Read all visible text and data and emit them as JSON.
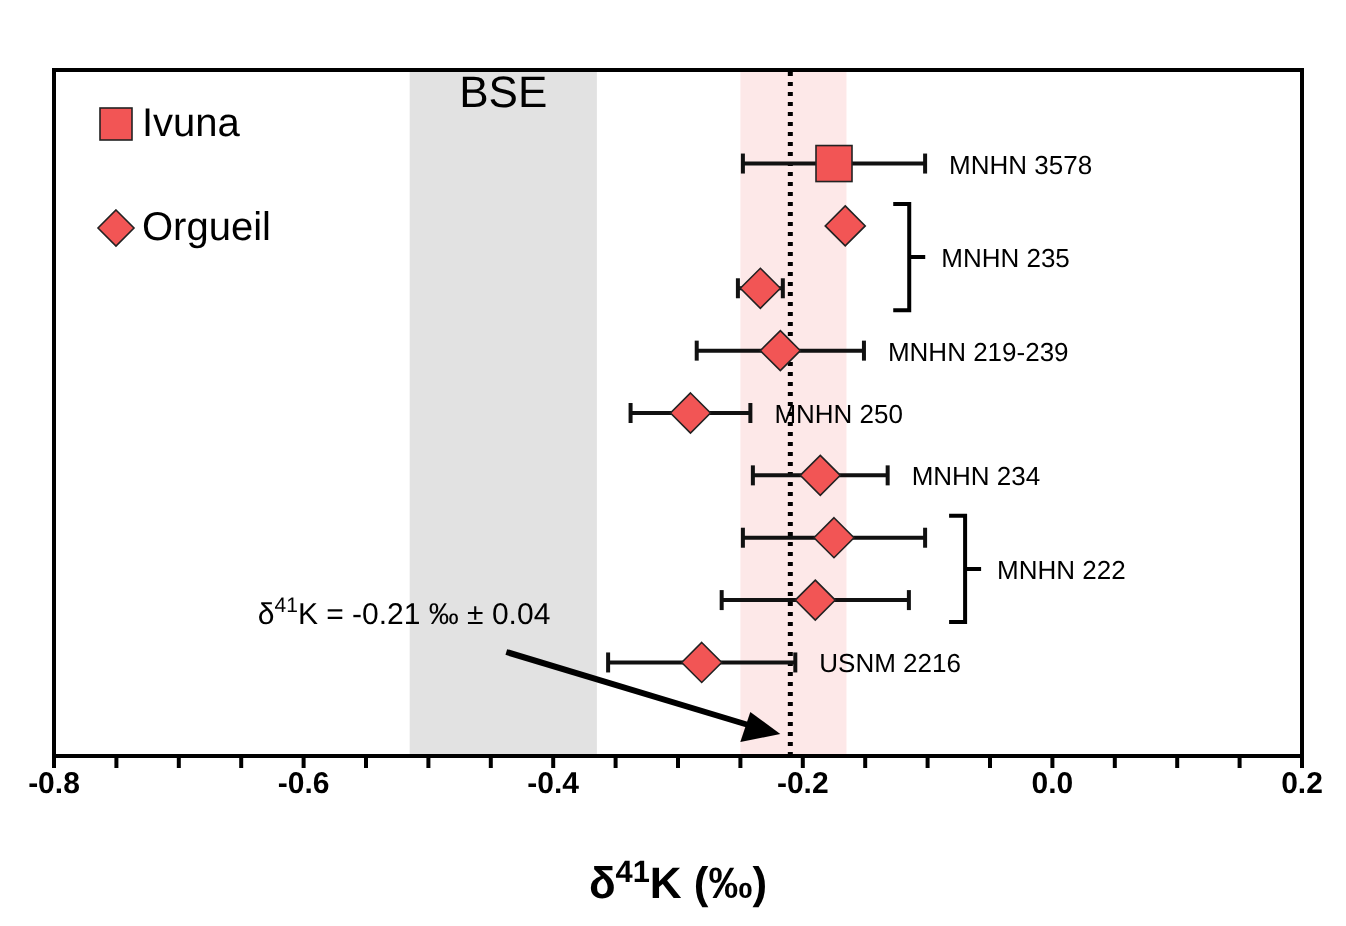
{
  "chart_data": {
    "type": "scatter",
    "orientation": "horizontal",
    "xlabel": "δ$^{41}$K (‰)",
    "categories": [
      null,
      null,
      null,
      null,
      null,
      null,
      null,
      null,
      null,
      null,
      null
    ],
    "xlim": [
      -0.8,
      0.2
    ],
    "xticks": [
      -0.8,
      {
        "value": -0.75,
        "label": null
      },
      {
        "value": -0.7,
        "label": null
      },
      {
        "value": -0.65,
        "label": null
      },
      -0.6,
      {
        "value": -0.55,
        "label": null
      },
      {
        "value": -0.5,
        "label": null
      },
      {
        "value": -0.45,
        "label": null
      },
      -0.4,
      {
        "value": -0.35,
        "label": null
      },
      {
        "value": -0.3,
        "label": null
      },
      {
        "value": -0.25,
        "label": null
      },
      -0.2,
      {
        "value": -0.15,
        "label": null
      },
      {
        "value": -0.1,
        "label": null
      },
      {
        "value": -0.05,
        "label": null
      },
      {
        "value": 0,
        "label": "0.0"
      },
      {
        "value": 0.05,
        "label": null
      },
      {
        "value": 0.1,
        "label": null
      },
      {
        "value": 0.15,
        "label": null
      },
      0.2
    ],
    "tick_labels": "x",
    "grid": false,
    "legend": "top left",
    "series": [
      {
        "name": "Ivuna",
        "color": "#f25555",
        "marker": "square",
        "values": [
          null,
          -0.175,
          null,
          null,
          null,
          null,
          null,
          null,
          null,
          null,
          null
        ],
        "errors": [
          null,
          0.073,
          null,
          null,
          null,
          null,
          null,
          null,
          null,
          null,
          null
        ]
      },
      {
        "name": "Orgueil",
        "color": "#f25555",
        "marker": "diamond",
        "values": [
          null,
          null,
          -0.166,
          -0.234,
          -0.218,
          -0.29,
          -0.186,
          -0.175,
          -0.19,
          -0.281,
          null
        ],
        "errors": [
          null,
          null,
          null,
          0.018,
          0.067,
          0.048,
          0.054,
          0.073,
          0.075,
          0.075,
          null
        ]
      }
    ],
    "bands": [
      {
        "axis": "x",
        "from": -0.515,
        "to": -0.365,
        "label": "BSE",
        "color": "#e2e2e2"
      },
      {
        "axis": "x",
        "from": -0.25,
        "to": -0.165,
        "color": "#fde8e8"
      }
    ],
    "ref_lines": [
      {
        "axis": "x",
        "value": -0.21,
        "line_style": "dotted",
        "color": "#000000"
      }
    ],
    "annotations": [
      "MNHN 3578",
      "MNHN 235",
      "MNHN 219-239",
      "MNHN 250",
      "MNHN 234",
      "MNHN 222",
      "USNM 2216",
      "δ$^{41}$K = -0.21 ‰ ± 0.04"
    ]
  }
}
